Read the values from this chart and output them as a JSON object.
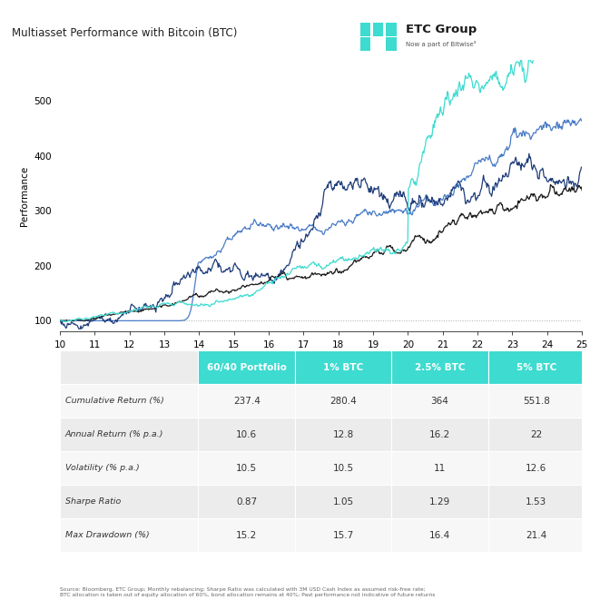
{
  "title": "Multiasset Performance with Bitcoin (BTC)",
  "logo_text": "ETC Group",
  "logo_subtext": "Now a part of Bitwise²",
  "xlabel_values": [
    10,
    11,
    12,
    13,
    14,
    15,
    16,
    17,
    18,
    19,
    20,
    21,
    22,
    23,
    24,
    25
  ],
  "ylabel": "Performance",
  "ylim": [
    80,
    575
  ],
  "yticks": [
    100,
    200,
    300,
    400,
    500
  ],
  "legend_labels": [
    "60/40",
    "1% BTC",
    "2.5% BTC",
    "5% BTC"
  ],
  "line_colors": {
    "60_40": "#1a1a1a",
    "btc_1": "#1f3d7a",
    "btc_2_5": "#4a7cc7",
    "btc_5": "#3ddbd0"
  },
  "table_header_bg": "#3ddbd0",
  "table_row_bg_odd": "#ececec",
  "table_row_bg_even": "#f7f7f7",
  "table_cols": [
    "60/40 Portfolio",
    "1% BTC",
    "2.5% BTC",
    "5% BTC"
  ],
  "table_rows": [
    "Cumulative Return (%)",
    "Annual Return (% p.a.)",
    "Volatility (% p.a.)",
    "Sharpe Ratio",
    "Max Drawdown (%)"
  ],
  "table_data": [
    [
      "237.4",
      "280.4",
      "364",
      "551.8"
    ],
    [
      "10.6",
      "12.8",
      "16.2",
      "22"
    ],
    [
      "10.5",
      "10.5",
      "11",
      "12.6"
    ],
    [
      "0.87",
      "1.05",
      "1.29",
      "1.53"
    ],
    [
      "15.2",
      "15.7",
      "16.4",
      "21.4"
    ]
  ],
  "footnote": "Source: Bloomberg, ETC Group; Monthly rebalancing; Sharpe Ratio was calculated with 3M USD Cash Index as assumed risk-free rate;\nBTC allocation is taken out of equity allocation of 60%, bond allocation remains at 40%; Past performance not indicative of future returns",
  "background_color": "#ffffff",
  "fig_width": 6.61,
  "fig_height": 6.61,
  "dpi": 100
}
